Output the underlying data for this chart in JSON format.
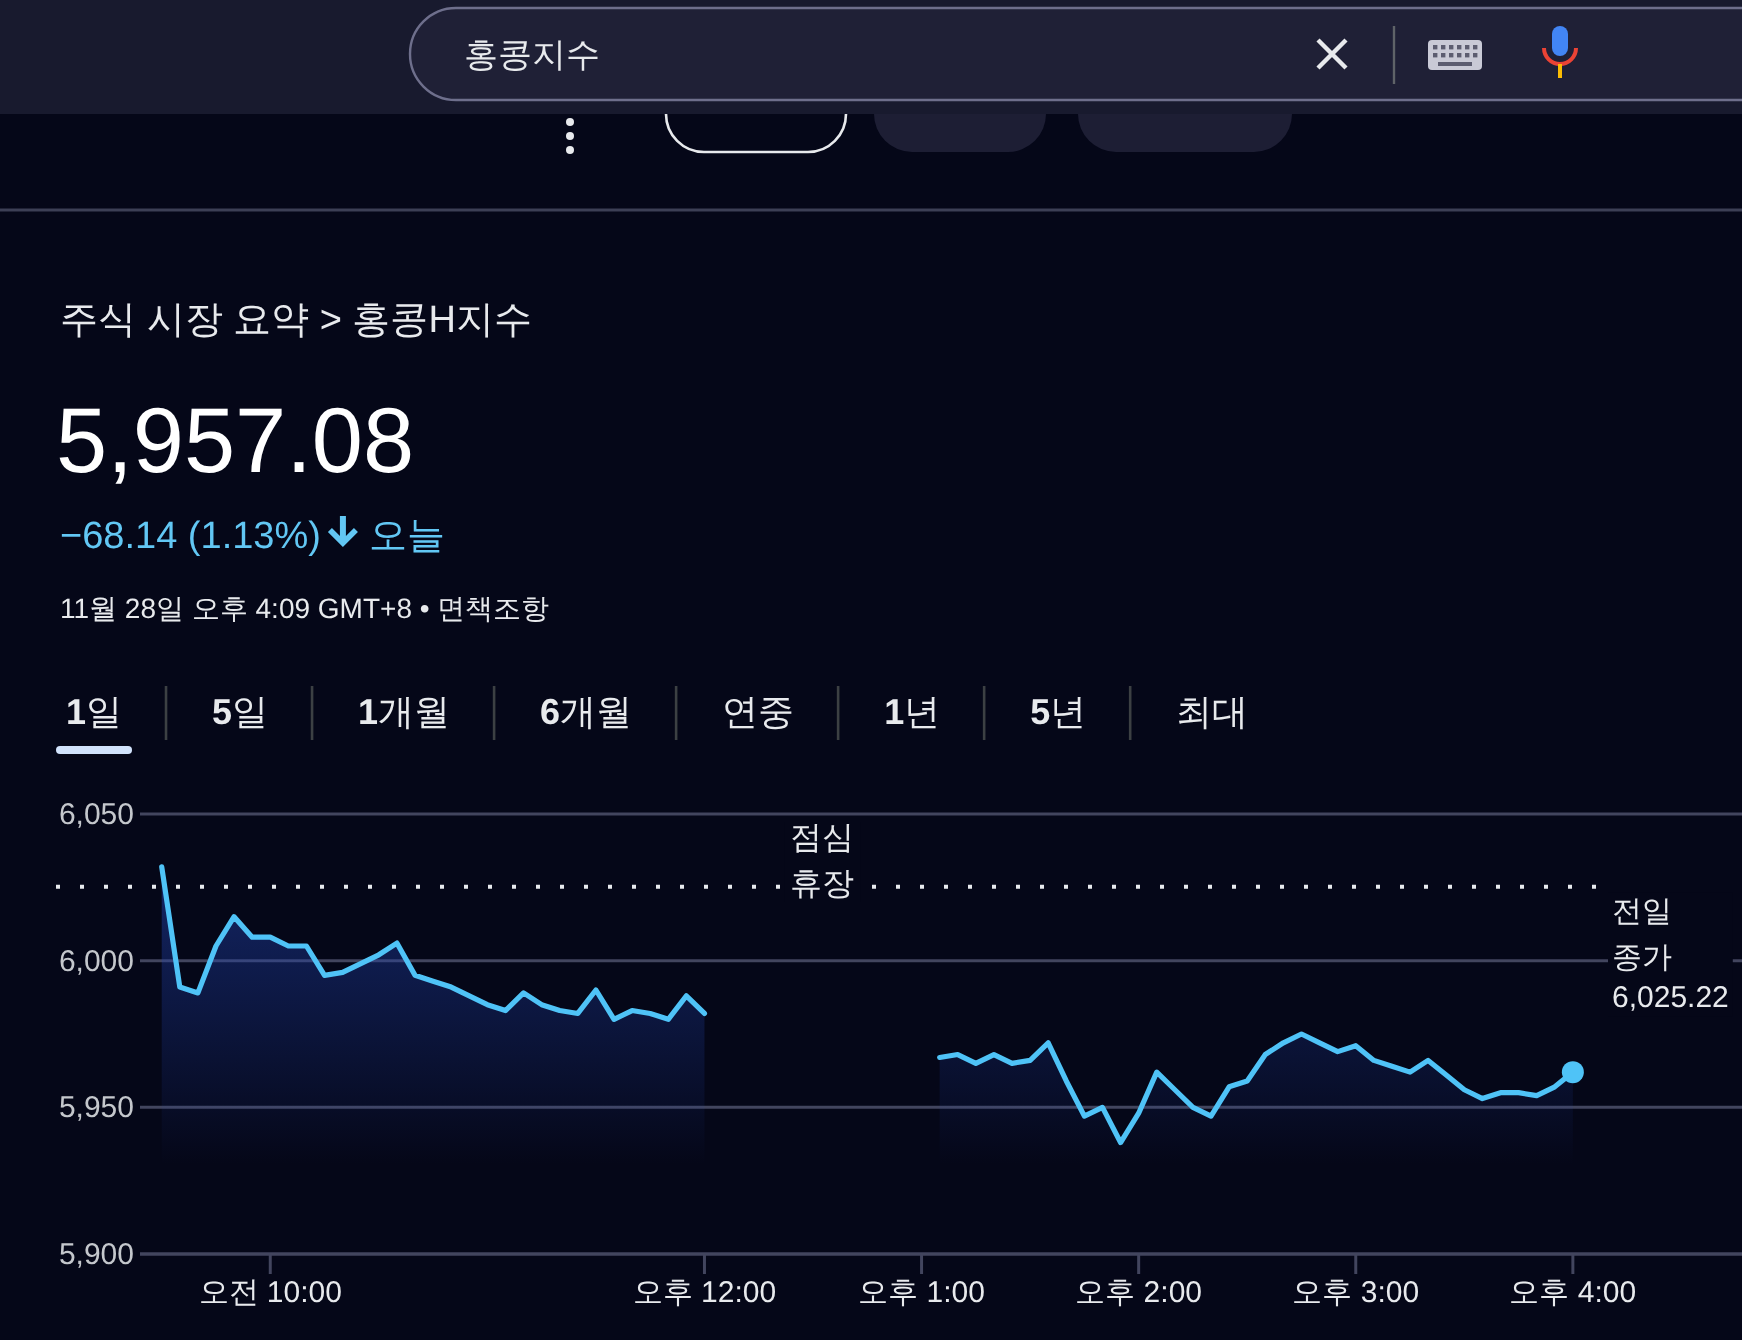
{
  "chart_data": {
    "type": "area",
    "title": "주식 시장 요약 > 홍콩H지수",
    "subtitle": "5,957.08",
    "annotations": [
      "홍콩지수",
      "−68.14 (1.13%)",
      "오늘",
      "11월 28일 오후 4:09 GMT+8 • 면책조항",
      "1일",
      "5일",
      "1개월",
      "6개월",
      "연중",
      "1년",
      "5년",
      "최대",
      "점심 휴장"
    ],
    "categories": [
      null,
      null,
      null,
      null,
      null,
      null,
      "오전 10:00",
      null,
      null,
      null,
      null,
      null,
      null,
      null,
      null,
      null,
      null,
      null,
      null,
      null,
      null,
      null,
      null,
      null,
      null,
      null,
      null,
      null,
      null,
      null,
      "오후 12:00",
      null,
      null,
      null,
      null,
      null,
      null,
      null,
      null,
      null,
      null,
      null,
      "오후 1:00",
      null,
      null,
      null,
      null,
      null,
      null,
      null,
      null,
      null,
      null,
      null,
      "오후 2:00",
      null,
      null,
      null,
      null,
      null,
      null,
      null,
      null,
      null,
      null,
      null,
      "오후 3:00",
      null,
      null,
      null,
      null,
      null,
      null,
      null,
      null,
      null,
      null,
      null,
      "오후 4:00"
    ],
    "series": [
      {
        "color": "#4fc3f7",
        "values": [
          6032,
          5991,
          5989,
          6005,
          6015,
          6008,
          6008,
          6005,
          6005,
          5995,
          5996,
          5999,
          6002,
          6006,
          5995,
          5993,
          5991,
          5988,
          5985,
          5983,
          5989,
          5985,
          5983,
          5982,
          5990,
          5980,
          5983,
          5982,
          5980,
          5988,
          5982,
          null,
          null,
          null,
          null,
          null,
          null,
          null,
          null,
          null,
          null,
          null,
          null,
          5967,
          5968,
          5965,
          5968,
          5965,
          5966,
          5972,
          5959,
          5947,
          5950,
          5938,
          5948,
          5962,
          5956,
          5950,
          5947,
          5957,
          5959,
          5968,
          5972,
          5975,
          5972,
          5969,
          5971,
          5966,
          5964,
          5962,
          5966,
          5961,
          5956,
          5953,
          5955,
          5955,
          5954,
          5957,
          5962
        ]
      },
      {
        "type": "scatter",
        "marker": "circle",
        "color": "#4fc3f7",
        "values": [
          null,
          null,
          null,
          null,
          null,
          null,
          null,
          null,
          null,
          null,
          null,
          null,
          null,
          null,
          null,
          null,
          null,
          null,
          null,
          null,
          null,
          null,
          null,
          null,
          null,
          null,
          null,
          null,
          null,
          null,
          null,
          null,
          null,
          null,
          null,
          null,
          null,
          null,
          null,
          null,
          null,
          null,
          null,
          null,
          null,
          null,
          null,
          null,
          null,
          null,
          null,
          null,
          null,
          null,
          null,
          null,
          null,
          null,
          null,
          null,
          null,
          null,
          null,
          null,
          null,
          null,
          null,
          null,
          null,
          null,
          null,
          null,
          null,
          null,
          null,
          null,
          null,
          null,
          5962
        ]
      }
    ],
    "ylim": [
      5900,
      6050
    ],
    "yticks": [
      {
        "value": 5900,
        "label": "5,900"
      },
      {
        "value": 5950,
        "label": "5,950"
      },
      {
        "value": 6000,
        "label": "6,000"
      },
      {
        "value": 6050,
        "label": "6,050"
      }
    ],
    "grid": "y",
    "ref_lines": [
      {
        "axis": "y",
        "value": 6025.22,
        "label": "전일 종가 6,025.22",
        "color": "#e8eaed",
        "line_style": "dotted"
      }
    ]
  }
}
